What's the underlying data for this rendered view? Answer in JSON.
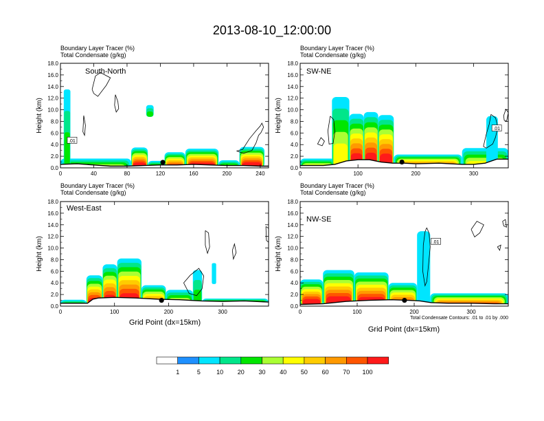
{
  "figure": {
    "title": "2013-08-10_12:00:00",
    "x_axis_label": "Grid Point (dx=15km)",
    "contour_note": "Total Condensate Contours: .01 to .01 by .000"
  },
  "colors": {
    "frame": "#000000",
    "contour": "#000000",
    "terrain_line": "#000000",
    "label_box_border": "#000000",
    "dot": "#000000"
  },
  "chart_data": [
    {
      "type": "heatmap",
      "panel": "South-North",
      "fieldTitle": "Boundary Layer Tracer    (%)",
      "fieldSubtitle": "Total Condensate    (g/kg)",
      "ylabel": "Height (km)",
      "xlabel": "",
      "xlim": [
        0,
        250
      ],
      "ylim": [
        0,
        18
      ],
      "xticks": [
        0,
        40,
        80,
        120,
        160,
        200,
        240
      ],
      "yticks": [
        0.0,
        2.0,
        4.0,
        6.0,
        8.0,
        10.0,
        12.0,
        14.0,
        16.0,
        18.0
      ],
      "ytick_labels": [
        "0.0",
        "2.0",
        "4.0",
        "6.0",
        "8.0",
        "10.0",
        "12.0",
        "14.0",
        "16.0",
        "18.0"
      ],
      "terrain": [
        [
          0,
          0.6
        ],
        [
          20,
          0.7
        ],
        [
          40,
          0.5
        ],
        [
          60,
          0.3
        ],
        [
          80,
          0.3
        ],
        [
          100,
          0.4
        ],
        [
          120,
          0.5
        ],
        [
          140,
          0.5
        ],
        [
          160,
          0.6
        ],
        [
          180,
          0.5
        ],
        [
          200,
          0.4
        ],
        [
          220,
          0.4
        ],
        [
          240,
          0.3
        ],
        [
          250,
          0.3
        ]
      ],
      "tracer_blobs": [
        {
          "x": [
            0,
            85
          ],
          "top": 1.6,
          "peak": 30
        },
        {
          "x": [
            85,
            105
          ],
          "top": 3.5,
          "peak": 100
        },
        {
          "x": [
            105,
            125
          ],
          "top": 1.2,
          "peak": 30
        },
        {
          "x": [
            125,
            150
          ],
          "top": 2.7,
          "peak": 80
        },
        {
          "x": [
            150,
            190
          ],
          "top": 3.3,
          "peak": 100
        },
        {
          "x": [
            190,
            215
          ],
          "top": 1.3,
          "peak": 30
        },
        {
          "x": [
            215,
            245
          ],
          "top": 3.6,
          "peak": 100
        },
        {
          "x": [
            4,
            12
          ],
          "top": 13.5,
          "peak": 20
        },
        {
          "x": [
            103,
            112
          ],
          "top": 10.8,
          "bottom": 8.8,
          "peak": 20
        }
      ],
      "contours": [
        {
          "points": [
            [
              38,
              13.5
            ],
            [
              42,
              15.8
            ],
            [
              48,
              16.4
            ],
            [
              60,
              15.5
            ],
            [
              55,
              14.2
            ],
            [
              45,
              12.3
            ],
            [
              40,
              12.8
            ],
            [
              38,
              13.5
            ]
          ]
        },
        {
          "points": [
            [
              66,
              12.6
            ],
            [
              69,
              11.4
            ],
            [
              70,
              10.2
            ],
            [
              67,
              9.6
            ],
            [
              65,
              10.8
            ],
            [
              66,
              12.6
            ]
          ]
        },
        {
          "points": [
            [
              240,
              7.2
            ],
            [
              242,
              7.7
            ],
            [
              244,
              7.0
            ],
            [
              241,
              6.1
            ],
            [
              238,
              5.6
            ],
            [
              235,
              4.3
            ],
            [
              230,
              3.0
            ],
            [
              220,
              2.5
            ],
            [
              212,
              2.9
            ],
            [
              219,
              3.2
            ],
            [
              227,
              5.0
            ],
            [
              235,
              6.4
            ],
            [
              240,
              7.2
            ]
          ]
        },
        {
          "points": [
            [
              28,
              9.0
            ],
            [
              30,
              7.3
            ],
            [
              29,
              5.6
            ],
            [
              27,
              6.2
            ],
            [
              28,
              9.0
            ]
          ]
        }
      ],
      "contour_labels": [
        {
          "x": 14,
          "y": 4.7,
          "text": ".01"
        }
      ],
      "dot": {
        "x": 123,
        "y": 0.95
      },
      "label_position": "top-left"
    },
    {
      "type": "heatmap",
      "panel": "SW-NE",
      "fieldTitle": "Boundary Layer Tracer    (%)",
      "fieldSubtitle": "Total Condensate    (g/kg)",
      "ylabel": "Height (km)",
      "xlabel": "",
      "xlim": [
        0,
        360
      ],
      "ylim": [
        0,
        18
      ],
      "xticks": [
        0,
        100,
        200,
        300
      ],
      "yticks": [
        0.0,
        2.0,
        4.0,
        6.0,
        8.0,
        10.0,
        12.0,
        14.0,
        16.0,
        18.0
      ],
      "ytick_labels": [
        "0.0",
        "2.0",
        "4.0",
        "6.0",
        "8.0",
        "10.0",
        "12.0",
        "14.0",
        "16.0",
        "18.0"
      ],
      "terrain": [
        [
          0,
          0.4
        ],
        [
          40,
          0.4
        ],
        [
          60,
          0.6
        ],
        [
          80,
          1.2
        ],
        [
          100,
          1.4
        ],
        [
          120,
          1.4
        ],
        [
          140,
          1.0
        ],
        [
          160,
          0.8
        ],
        [
          180,
          0.8
        ],
        [
          200,
          0.7
        ],
        [
          240,
          0.8
        ],
        [
          280,
          0.6
        ],
        [
          300,
          0.6
        ],
        [
          320,
          0.8
        ],
        [
          340,
          1.5
        ],
        [
          360,
          1.5
        ]
      ],
      "tracer_blobs": [
        {
          "x": [
            0,
            60
          ],
          "top": 1.6,
          "peak": 40
        },
        {
          "x": [
            55,
            85
          ],
          "top": 12.2,
          "peak": 40
        },
        {
          "x": [
            85,
            110
          ],
          "top": 9.3,
          "peak": 100
        },
        {
          "x": [
            110,
            135
          ],
          "top": 9.6,
          "peak": 100
        },
        {
          "x": [
            135,
            162
          ],
          "top": 9.1,
          "peak": 100
        },
        {
          "x": [
            162,
            280
          ],
          "top": 2.3,
          "peak": 70
        },
        {
          "x": [
            280,
            360
          ],
          "top": 3.4,
          "peak": 40
        },
        {
          "x": [
            322,
            342
          ],
          "top": 8.9,
          "peak": 5
        }
      ],
      "contours": [
        {
          "points": [
            [
              52,
              8.9
            ],
            [
              58,
              8.3
            ],
            [
              60,
              6.2
            ],
            [
              57,
              4.2
            ],
            [
              50,
              4.1
            ],
            [
              48,
              6.4
            ],
            [
              52,
              8.9
            ]
          ]
        },
        {
          "points": [
            [
              330,
              9.2
            ],
            [
              338,
              8.6
            ],
            [
              342,
              7.0
            ],
            [
              338,
              5.3
            ],
            [
              333,
              4.1
            ],
            [
              322,
              3.4
            ],
            [
              317,
              3.7
            ],
            [
              322,
              5.8
            ],
            [
              327,
              7.5
            ],
            [
              330,
              9.2
            ]
          ]
        },
        {
          "points": [
            [
              352,
              9.0
            ],
            [
              356,
              10.1
            ],
            [
              360,
              9.5
            ],
            [
              357,
              8.0
            ],
            [
              353,
              8.2
            ],
            [
              352,
              9.0
            ]
          ]
        },
        {
          "points": [
            [
              30,
              4.1
            ],
            [
              36,
              5.2
            ],
            [
              42,
              4.6
            ],
            [
              38,
              3.8
            ],
            [
              30,
              4.1
            ]
          ]
        }
      ],
      "contour_labels": [
        {
          "x": 340,
          "y": 6.8,
          "text": ".01"
        }
      ],
      "dot": {
        "x": 176,
        "y": 1.0
      },
      "label_position": "top-left"
    },
    {
      "type": "heatmap",
      "panel": "West-East",
      "fieldTitle": "Boundary Layer Tracer    (%)",
      "fieldSubtitle": "Total Condensate    (g/kg)",
      "ylabel": "Height (km)",
      "xlabel": "Grid Point (dx=15km)",
      "xlim": [
        0,
        385
      ],
      "ylim": [
        0,
        18
      ],
      "xticks": [
        0,
        100,
        200,
        300
      ],
      "yticks": [
        0.0,
        2.0,
        4.0,
        6.0,
        8.0,
        10.0,
        12.0,
        14.0,
        16.0,
        18.0
      ],
      "ytick_labels": [
        "0.0",
        "2.0",
        "4.0",
        "6.0",
        "8.0",
        "10.0",
        "12.0",
        "14.0",
        "16.0",
        "18.0"
      ],
      "terrain": [
        [
          0,
          0.5
        ],
        [
          50,
          0.5
        ],
        [
          60,
          1.2
        ],
        [
          70,
          1.4
        ],
        [
          100,
          1.5
        ],
        [
          140,
          1.4
        ],
        [
          180,
          1.2
        ],
        [
          220,
          1.1
        ],
        [
          260,
          0.9
        ],
        [
          300,
          0.8
        ],
        [
          340,
          0.9
        ],
        [
          385,
          0.7
        ]
      ],
      "tracer_blobs": [
        {
          "x": [
            0,
            48
          ],
          "top": 1.1,
          "peak": 30
        },
        {
          "x": [
            48,
            78
          ],
          "top": 5.3,
          "peak": 100
        },
        {
          "x": [
            78,
            105
          ],
          "top": 7.2,
          "peak": 100
        },
        {
          "x": [
            105,
            150
          ],
          "top": 8.2,
          "peak": 100
        },
        {
          "x": [
            150,
            195
          ],
          "top": 3.6,
          "peak": 70
        },
        {
          "x": [
            195,
            245
          ],
          "top": 2.8,
          "peak": 40
        },
        {
          "x": [
            245,
            262
          ],
          "top": 6.2,
          "peak": 20
        },
        {
          "x": [
            262,
            385
          ],
          "top": 1.3,
          "peak": 60
        },
        {
          "x": [
            280,
            288
          ],
          "top": 7.4,
          "bottom": 3.8,
          "peak": 5
        }
      ],
      "contours": [
        {
          "points": [
            [
              318,
              9.6
            ],
            [
              322,
              10.7
            ],
            [
              325,
              9.2
            ],
            [
              320,
              8.1
            ],
            [
              318,
              9.6
            ]
          ]
        },
        {
          "points": [
            [
              268,
              13.0
            ],
            [
              274,
              12.6
            ],
            [
              276,
              10.2
            ],
            [
              272,
              9.1
            ],
            [
              268,
              10.5
            ],
            [
              268,
              13.0
            ]
          ]
        },
        {
          "points": [
            [
              228,
              4.0
            ],
            [
              240,
              5.3
            ],
            [
              256,
              6.5
            ],
            [
              265,
              5.2
            ],
            [
              262,
              3.0
            ],
            [
              252,
              1.8
            ],
            [
              238,
              2.2
            ],
            [
              228,
              4.0
            ]
          ]
        },
        {
          "points": [
            [
              380,
              13.7
            ],
            [
              385,
              13.4
            ],
            [
              385,
              11.0
            ],
            [
              381,
              11.3
            ],
            [
              380,
              13.7
            ]
          ]
        }
      ],
      "contour_labels": [],
      "dot": {
        "x": 187,
        "y": 1.0
      },
      "label_position": "top-left"
    },
    {
      "type": "heatmap",
      "panel": "NW-SE",
      "fieldTitle": "Boundary Layer Tracer    (%)",
      "fieldSubtitle": "Total Condensate    (g/kg)",
      "ylabel": "Height (km)",
      "xlabel": "Grid Point (dx=15km)",
      "xlim": [
        0,
        365
      ],
      "ylim": [
        0,
        18
      ],
      "xticks": [
        0,
        100,
        200,
        300
      ],
      "yticks": [
        0.0,
        2.0,
        4.0,
        6.0,
        8.0,
        10.0,
        12.0,
        14.0,
        16.0,
        18.0
      ],
      "ytick_labels": [
        "0.0",
        "2.0",
        "4.0",
        "6.0",
        "8.0",
        "10.0",
        "12.0",
        "14.0",
        "16.0",
        "18.0"
      ],
      "terrain": [
        [
          0,
          0.3
        ],
        [
          40,
          0.4
        ],
        [
          80,
          0.8
        ],
        [
          120,
          1.0
        ],
        [
          160,
          1.1
        ],
        [
          190,
          1.0
        ],
        [
          210,
          0.9
        ],
        [
          230,
          0.6
        ],
        [
          260,
          0.5
        ],
        [
          300,
          0.5
        ],
        [
          340,
          0.4
        ],
        [
          365,
          0.4
        ]
      ],
      "tracer_blobs": [
        {
          "x": [
            0,
            40
          ],
          "top": 4.6,
          "peak": 100
        },
        {
          "x": [
            40,
            95
          ],
          "top": 6.2,
          "peak": 100
        },
        {
          "x": [
            95,
            155
          ],
          "top": 5.8,
          "peak": 100
        },
        {
          "x": [
            155,
            205
          ],
          "top": 4.0,
          "peak": 70
        },
        {
          "x": [
            205,
            228
          ],
          "top": 12.9,
          "peak": 5
        },
        {
          "x": [
            228,
            365
          ],
          "top": 2.2,
          "peak": 80
        }
      ],
      "contours": [
        {
          "points": [
            [
              222,
              13.5
            ],
            [
              226,
              12.6
            ],
            [
              228,
              10.2
            ],
            [
              225,
              7.0
            ],
            [
              222,
              4.2
            ],
            [
              219,
              3.5
            ],
            [
              215,
              6.0
            ],
            [
              216,
              10.5
            ],
            [
              219,
              12.8
            ],
            [
              222,
              13.5
            ]
          ]
        },
        {
          "points": [
            [
              300,
              13.2
            ],
            [
              310,
              14.6
            ],
            [
              322,
              14.0
            ],
            [
              315,
              12.6
            ],
            [
              306,
              11.9
            ],
            [
              300,
              13.2
            ]
          ]
        },
        {
          "points": [
            [
              355,
              14.6
            ],
            [
              360,
              14.9
            ],
            [
              362,
              13.6
            ],
            [
              357,
              13.8
            ],
            [
              355,
              14.6
            ]
          ]
        },
        {
          "points": [
            [
              346,
              10.2
            ],
            [
              352,
              10.5
            ],
            [
              350,
              9.6
            ],
            [
              346,
              10.2
            ]
          ]
        }
      ],
      "contour_labels": [
        {
          "x": 238,
          "y": 11.1,
          "text": ".01"
        }
      ],
      "dot": {
        "x": 183,
        "y": 1.0
      },
      "label_position": "top-left"
    }
  ],
  "colorbar": {
    "levels": [
      "1",
      "5",
      "10",
      "20",
      "30",
      "40",
      "50",
      "60",
      "70",
      "100"
    ],
    "colors": [
      "#ffffff",
      "#1e90ff",
      "#00e5ff",
      "#00e68a",
      "#00e600",
      "#aaff33",
      "#ffff00",
      "#ffcc00",
      "#ff9900",
      "#ff5500",
      "#ff1a1a"
    ]
  }
}
